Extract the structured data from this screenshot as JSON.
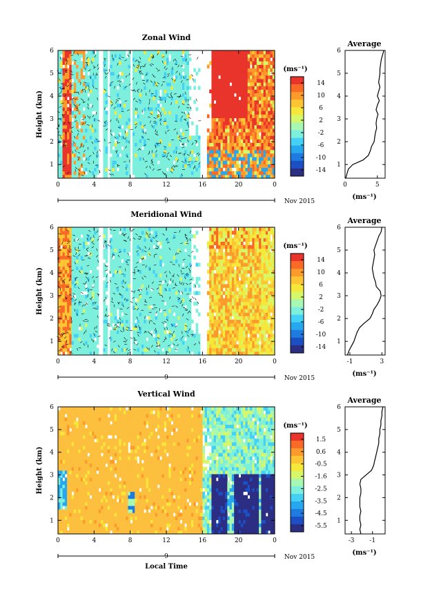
{
  "figure": {
    "xlabel": "Local Time",
    "date_label": "Nov 2015",
    "day_marker": "9"
  },
  "chart_data": [
    {
      "type": "heatmap",
      "title": "Zonal Wind",
      "ylabel": "Height (km)",
      "xlabel": "Local Time",
      "x_ticks": [
        "0",
        "4",
        "8",
        "12",
        "16",
        "20",
        "0"
      ],
      "x_range": [
        0,
        24
      ],
      "y_ticks": [
        "1",
        "2",
        "3",
        "4",
        "5",
        "6"
      ],
      "y_range": [
        0.4,
        6.0
      ],
      "colorbar": {
        "unit": "(ms⁻¹)",
        "ticks": [
          "14",
          "10",
          "6",
          "2",
          "-2",
          "-6",
          "-10",
          "-14"
        ]
      },
      "features": {
        "background": "light-cyan (~0 ms-1) with black wind barbs, 0-16 LT",
        "high_values": "red (>14 ms-1) band 0.5-1.5 LT and 17-21 LT above 3 km"
      },
      "average_profile": {
        "title": "Average",
        "xlabel": "(ms⁻¹)",
        "x_ticks": [
          "0",
          "5"
        ],
        "x_range": [
          0,
          6.2
        ],
        "y_ticks": [
          "1",
          "2",
          "3",
          "4",
          "5",
          "6"
        ],
        "heights": [
          0.4,
          0.8,
          1.0,
          1.2,
          1.4,
          1.6,
          1.8,
          2.0,
          2.2,
          2.4,
          2.6,
          2.8,
          3.0,
          3.2,
          3.4,
          3.6,
          3.8,
          4.0,
          4.2,
          4.4,
          4.6,
          4.8,
          5.0,
          5.2,
          5.4,
          5.6,
          5.8,
          6.0
        ],
        "values": [
          0.1,
          0.5,
          1.2,
          2.8,
          3.6,
          3.9,
          4.1,
          4.5,
          4.6,
          4.7,
          4.9,
          4.8,
          4.9,
          5.1,
          4.8,
          5.0,
          5.3,
          5.0,
          5.2,
          5.4,
          5.2,
          5.3,
          5.4,
          5.4,
          5.5,
          5.6,
          5.8,
          6.0
        ]
      }
    },
    {
      "type": "heatmap",
      "title": "Meridional Wind",
      "ylabel": "Height (km)",
      "xlabel": "Local Time",
      "x_ticks": [
        "0",
        "4",
        "8",
        "12",
        "16",
        "20",
        "0"
      ],
      "x_range": [
        0,
        24
      ],
      "y_ticks": [
        "1",
        "2",
        "3",
        "4",
        "5",
        "6"
      ],
      "y_range": [
        0.4,
        6.0
      ],
      "colorbar": {
        "unit": "(ms⁻¹)",
        "ticks": [
          "14",
          "10",
          "6",
          "2",
          "-2",
          "-6",
          "-10",
          "-14"
        ]
      },
      "features": {
        "background": "light-cyan (~0 ms-1) with black wind barbs, 0-16 LT",
        "high_values": "orange/red (6-14 ms-1) 16-24 LT"
      },
      "average_profile": {
        "title": "Average",
        "xlabel": "(ms⁻¹)",
        "x_ticks": [
          "-1",
          "3"
        ],
        "x_range": [
          -1.6,
          3.4
        ],
        "y_ticks": [
          "1",
          "2",
          "3",
          "4",
          "5",
          "6"
        ],
        "heights": [
          0.4,
          0.6,
          0.8,
          1.0,
          1.2,
          1.4,
          1.6,
          1.8,
          2.0,
          2.2,
          2.4,
          2.6,
          2.8,
          3.0,
          3.2,
          3.4,
          3.6,
          3.8,
          4.0,
          4.2,
          4.4,
          4.6,
          4.8,
          5.0,
          5.2,
          5.4,
          5.6,
          5.8,
          6.0
        ],
        "values": [
          -1.3,
          -1.1,
          -0.8,
          -0.5,
          -0.3,
          -0.1,
          0.2,
          0.8,
          1.5,
          1.8,
          2.0,
          2.4,
          2.7,
          2.9,
          2.8,
          2.3,
          2.2,
          2.0,
          1.9,
          1.8,
          1.9,
          2.0,
          2.1,
          2.0,
          2.2,
          2.4,
          2.6,
          2.9,
          3.0
        ]
      }
    },
    {
      "type": "heatmap",
      "title": "Vertical Wind",
      "ylabel": "Height (km)",
      "xlabel": "Local Time",
      "x_ticks": [
        "0",
        "4",
        "8",
        "12",
        "16",
        "20",
        "0"
      ],
      "x_range": [
        0,
        24
      ],
      "y_ticks": [
        "1",
        "2",
        "3",
        "4",
        "5",
        "6"
      ],
      "y_range": [
        0.4,
        6.0
      ],
      "colorbar": {
        "unit": "(ms⁻¹)",
        "ticks": [
          "1.5",
          "0.6",
          "-0.5",
          "-1.6",
          "-2.5",
          "-3.5",
          "-4.5",
          "-5.5"
        ]
      },
      "features": {
        "background": "light orange (~0 ms-1), 0-16 LT",
        "low_values": "dark blue (< -5 ms-1) below 3 km, 17-24 LT"
      },
      "average_profile": {
        "title": "Average",
        "xlabel": "(ms⁻¹)",
        "x_ticks": [
          "-3",
          "-1"
        ],
        "x_range": [
          -3.6,
          0.2
        ],
        "y_ticks": [
          "1",
          "2",
          "3",
          "4",
          "5",
          "6"
        ],
        "heights": [
          0.4,
          0.6,
          0.8,
          1.0,
          1.2,
          1.4,
          1.6,
          1.8,
          2.0,
          2.2,
          2.4,
          2.6,
          2.8,
          3.0,
          3.2,
          3.4,
          3.6,
          3.8,
          4.0,
          4.2,
          4.4,
          4.6,
          4.8,
          5.0,
          5.2,
          5.4,
          5.6,
          5.8,
          6.0
        ],
        "values": [
          -2.1,
          -2.2,
          -2.1,
          -2.2,
          -2.2,
          -2.1,
          -2.2,
          -2.2,
          -2.2,
          -2.1,
          -2.1,
          -2.2,
          -2.1,
          -1.6,
          -1.1,
          -0.9,
          -0.8,
          -0.7,
          -0.6,
          -0.5,
          -0.4,
          -0.4,
          -0.3,
          -0.3,
          -0.2,
          -0.2,
          -0.1,
          -0.1,
          0.0
        ]
      }
    }
  ],
  "colors": {
    "wind_scale": [
      "#2c2e84",
      "#1c4fc4",
      "#1f7be0",
      "#26a7ee",
      "#45d0f5",
      "#7cf0dd",
      "#a6f8b2",
      "#d6f76a",
      "#f6e83a",
      "#fdc534",
      "#fd9a2c",
      "#f86a26",
      "#e8342a"
    ],
    "vertical_background": "#fdbf3e"
  }
}
